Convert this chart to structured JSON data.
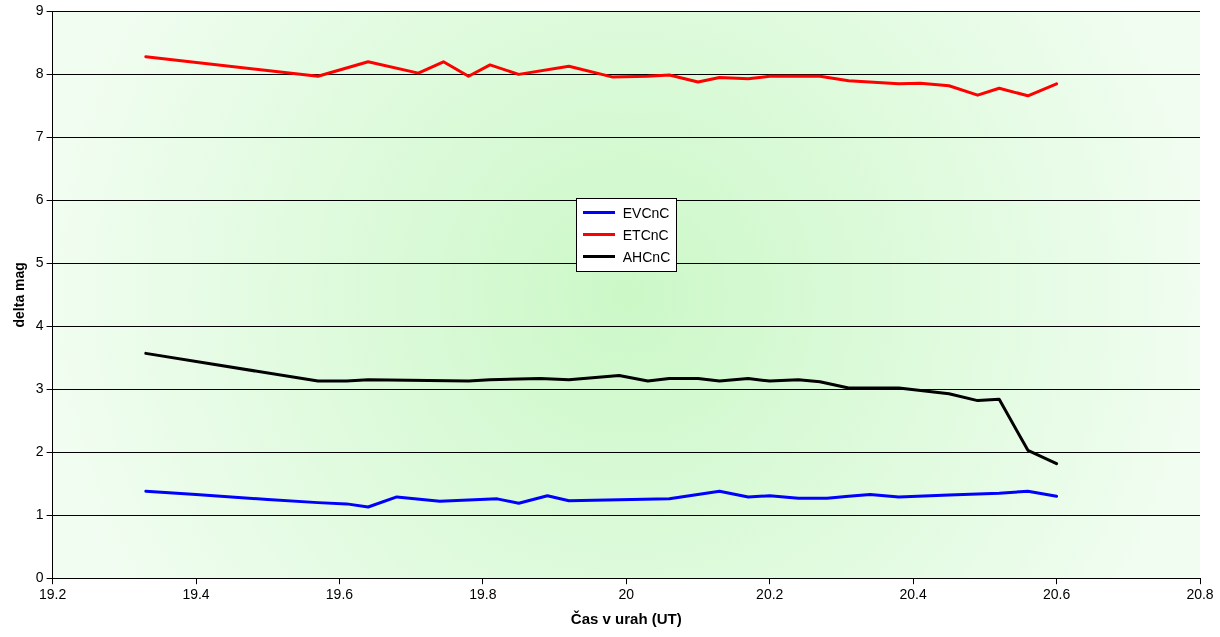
{
  "chart_data": {
    "type": "line",
    "xlabel": "Čas v urah (UT)",
    "ylabel": "delta mag",
    "xlim": [
      19.2,
      20.8
    ],
    "xticks": [
      19.2,
      19.4,
      19.6,
      19.8,
      20,
      20.2,
      20.4,
      20.6,
      20.8
    ],
    "ylim": [
      0,
      9
    ],
    "yticks": [
      0,
      1,
      2,
      3,
      4,
      5,
      6,
      7,
      8,
      9
    ],
    "grid": "y",
    "legend": "center",
    "marker": "none",
    "line_style": "solid",
    "series": [
      {
        "name": "EVCnC",
        "color": "#0000ff",
        "x": [
          19.33,
          19.4,
          19.5,
          19.57,
          19.61,
          19.64,
          19.68,
          19.74,
          19.82,
          19.85,
          19.89,
          19.92,
          20.06,
          20.13,
          20.17,
          20.2,
          20.24,
          20.28,
          20.31,
          20.34,
          20.38,
          20.45,
          20.52,
          20.56,
          20.6
        ],
        "values": [
          1.38,
          1.33,
          1.25,
          1.2,
          1.18,
          1.13,
          1.29,
          1.22,
          1.26,
          1.19,
          1.31,
          1.23,
          1.26,
          1.38,
          1.29,
          1.31,
          1.27,
          1.27,
          1.3,
          1.33,
          1.29,
          1.32,
          1.35,
          1.38,
          1.3
        ]
      },
      {
        "name": "ETCnC",
        "color": "#ff0000",
        "x": [
          19.33,
          19.57,
          19.64,
          19.71,
          19.745,
          19.78,
          19.81,
          19.85,
          19.92,
          19.98,
          20.03,
          20.06,
          20.1,
          20.13,
          20.17,
          20.2,
          20.27,
          20.31,
          20.38,
          20.41,
          20.45,
          20.49,
          20.52,
          20.56,
          20.6
        ],
        "values": [
          8.28,
          7.97,
          8.2,
          8.02,
          8.2,
          7.97,
          8.15,
          8.0,
          8.13,
          7.96,
          7.97,
          7.99,
          7.88,
          7.95,
          7.93,
          7.97,
          7.97,
          7.9,
          7.85,
          7.86,
          7.82,
          7.67,
          7.78,
          7.66,
          7.85
        ]
      },
      {
        "name": "AHCnC",
        "color": "#000000",
        "x": [
          19.33,
          19.57,
          19.61,
          19.64,
          19.78,
          19.81,
          19.88,
          19.92,
          19.99,
          20.03,
          20.06,
          20.1,
          20.13,
          20.17,
          20.2,
          20.24,
          20.27,
          20.31,
          20.38,
          20.45,
          20.49,
          20.52,
          20.56,
          20.6
        ],
        "values": [
          3.57,
          3.13,
          3.13,
          3.15,
          3.13,
          3.15,
          3.17,
          3.15,
          3.22,
          3.13,
          3.17,
          3.17,
          3.13,
          3.17,
          3.13,
          3.15,
          3.12,
          3.02,
          3.02,
          2.93,
          2.82,
          2.84,
          2.03,
          1.82
        ]
      }
    ]
  }
}
